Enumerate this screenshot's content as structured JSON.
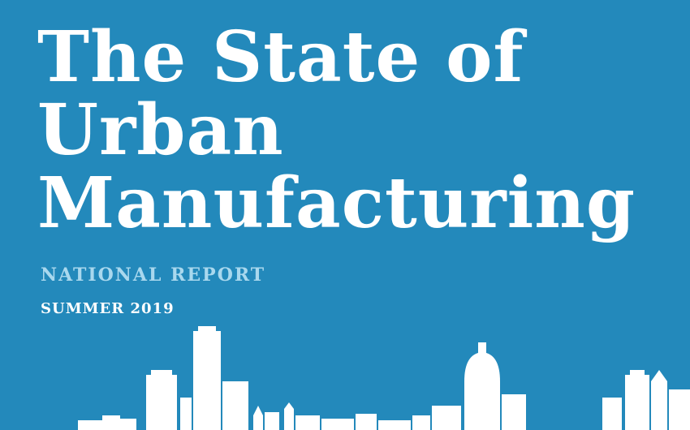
{
  "cover": {
    "title_lines": [
      "The State of",
      "Urban",
      "Manufacturing"
    ],
    "subtitle": "NATIONAL REPORT",
    "date": "SUMMER 2019"
  },
  "colors": {
    "background": "#2389bb",
    "title": "#ffffff",
    "subtitle": "#a9d8ee",
    "skyline": "#ffffff"
  }
}
